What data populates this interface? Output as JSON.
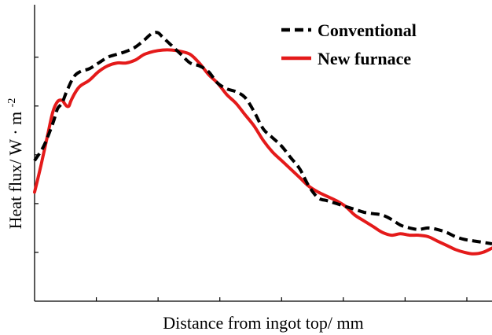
{
  "chart_data": {
    "type": "line",
    "title": "",
    "xlabel": "Distance from ingot top/ mm",
    "ylabel_text": "Heat flux/ W",
    "ylabel_unit": "m",
    "ylabel_exp": "-2",
    "xlim": [
      0,
      100
    ],
    "ylim": [
      0,
      100
    ],
    "grid": false,
    "legend_position": "top-right",
    "x_ticks": [
      13.5,
      27,
      40.5,
      54,
      67.5,
      81,
      94.5
    ],
    "y_ticks": [
      17,
      34,
      51,
      68,
      85
    ],
    "series": [
      {
        "name": "Conventional",
        "color": "#000000",
        "style": "dashed",
        "x": [
          0,
          2,
          4,
          5,
          6,
          7,
          8.5,
          10,
          12,
          14,
          16,
          18,
          20,
          22,
          24,
          25,
          26,
          27,
          28,
          30,
          32,
          34,
          36,
          38,
          40,
          42,
          44,
          46,
          48,
          50,
          52,
          54,
          56,
          58,
          60,
          62,
          64,
          66,
          68,
          70,
          72,
          74,
          76,
          78,
          80,
          82,
          84,
          86,
          88,
          90,
          92,
          94,
          96,
          98,
          100
        ],
        "y": [
          49,
          54,
          62,
          67,
          69,
          73,
          78,
          80,
          81,
          83,
          85,
          86,
          87,
          88.5,
          91,
          92.5,
          93.5,
          93.5,
          92,
          89,
          86,
          83,
          82,
          80,
          76,
          74,
          73,
          71,
          66,
          60,
          57,
          54,
          50,
          46,
          40,
          36,
          35,
          34,
          33,
          32,
          31,
          30.5,
          30,
          28.5,
          26.5,
          25.5,
          25,
          25.5,
          25,
          24,
          22.5,
          21.5,
          21,
          20.5,
          20
        ]
      },
      {
        "name": "New furnace",
        "color": "#e41a1a",
        "style": "solid",
        "x": [
          0,
          1.5,
          3,
          4,
          5,
          6,
          6.5,
          7,
          7.5,
          8,
          9,
          10,
          12,
          14,
          16,
          18,
          20,
          22,
          24,
          26,
          28,
          30,
          32,
          34,
          36,
          38,
          40,
          42,
          44,
          46,
          48,
          50,
          52,
          54,
          56,
          58,
          60,
          62,
          64,
          66,
          68,
          70,
          72,
          74,
          76,
          78,
          80,
          82,
          84,
          86,
          88,
          90,
          92,
          94,
          96,
          98,
          100
        ],
        "y": [
          38,
          48,
          59,
          66,
          69.5,
          70,
          69,
          68,
          68,
          70,
          73,
          75,
          77,
          80,
          82,
          83,
          83,
          84,
          86,
          87,
          87.5,
          87.5,
          87,
          86,
          83,
          79,
          76,
          72,
          69,
          65,
          61,
          56,
          52,
          49,
          46,
          43,
          40,
          38,
          36.5,
          35,
          33,
          30,
          28,
          26,
          24,
          23,
          23.5,
          23,
          23,
          22.5,
          21,
          19.5,
          18,
          17,
          16.5,
          17,
          18.5
        ]
      }
    ],
    "legend": {
      "entries": [
        {
          "label": "Conventional",
          "series": 0
        },
        {
          "label": "New furnace",
          "series": 1
        }
      ]
    }
  }
}
